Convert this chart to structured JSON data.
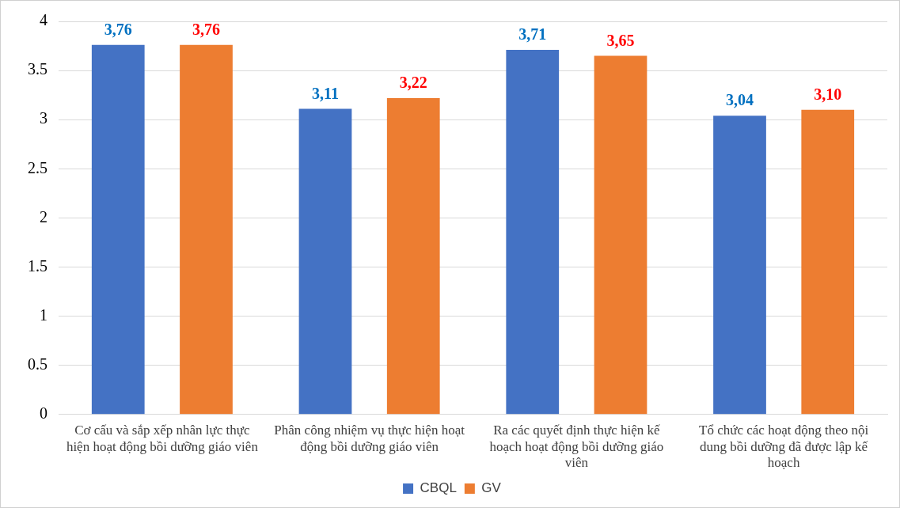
{
  "chart_data": {
    "type": "bar",
    "categories": [
      "Cơ cấu và sắp xếp nhân lực thực hiện hoạt động bồi dưỡng giáo viên",
      "Phân công nhiệm vụ thực hiện hoạt động bồi dưỡng giáo viên",
      "Ra các quyết định thực hiện kế hoạch hoạt động bồi dưỡng giáo viên",
      "Tổ chức các hoạt động theo nội dung bồi dưỡng đã được lập kế hoạch"
    ],
    "series": [
      {
        "name": "CBQL",
        "color": "#4472c4",
        "values": [
          3.76,
          3.11,
          3.71,
          3.04
        ],
        "value_labels": [
          "3,76",
          "3,11",
          "3,71",
          "3,04"
        ]
      },
      {
        "name": "GV",
        "color": "#ed7d31",
        "values": [
          3.76,
          3.22,
          3.65,
          3.1
        ],
        "value_labels": [
          "3,76",
          "3,22",
          "3,65",
          "3,10"
        ]
      }
    ],
    "ylim": [
      0,
      4
    ],
    "yticks": [
      0,
      0.5,
      1,
      1.5,
      2,
      2.5,
      3,
      3.5,
      4
    ],
    "grid": "y",
    "legend": "bottom"
  }
}
